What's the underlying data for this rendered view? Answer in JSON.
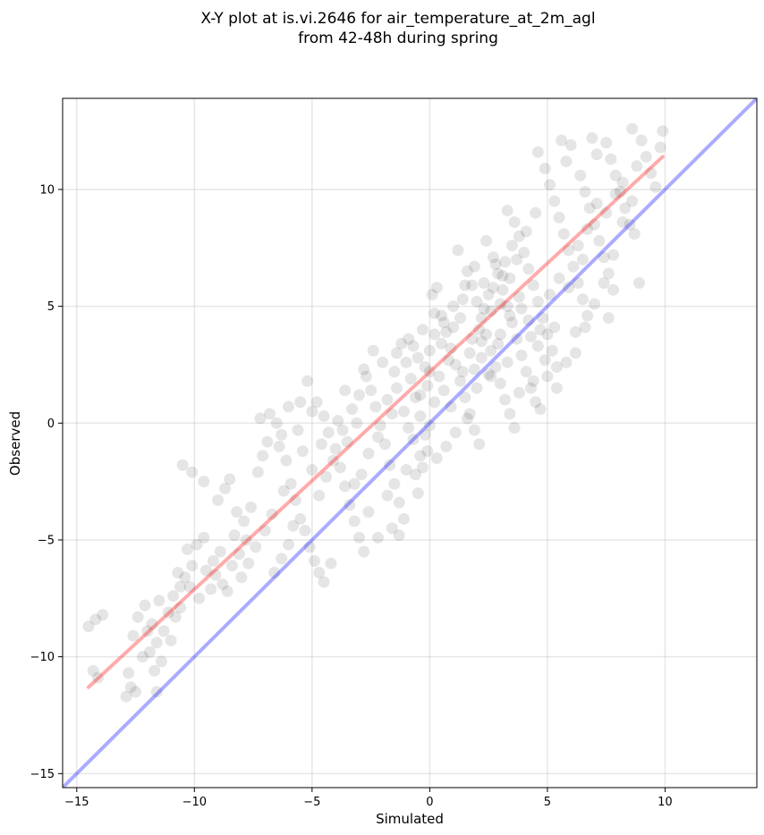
{
  "chart_data": {
    "type": "scatter",
    "title_line1": "X-Y plot at is.vi.2646 for air_temperature_at_2m_agl",
    "title_line2": "from 42-48h during spring",
    "xlabel": "Simulated",
    "ylabel": "Observed",
    "xlim": [
      -15.6,
      13.9
    ],
    "ylim": [
      -15.6,
      13.9
    ],
    "xticks": [
      -15,
      -10,
      -5,
      0,
      5,
      10
    ],
    "yticks": [
      -15,
      -10,
      -5,
      0,
      5,
      10
    ],
    "xtick_labels": [
      "−15",
      "−10",
      "−5",
      "0",
      "5",
      "10"
    ],
    "ytick_labels": [
      "−15",
      "−10",
      "−5",
      "0",
      "5",
      "10"
    ],
    "grid": true,
    "point_color": "#000000",
    "point_alpha": 0.1,
    "regression_line": {
      "x": [
        -14.5,
        9.9
      ],
      "y": [
        -11.3,
        11.4
      ],
      "color": "#ff0000"
    },
    "identity_line": {
      "x": [
        -15.6,
        13.9
      ],
      "y": [
        -15.6,
        13.9
      ],
      "color": "#0000ff"
    },
    "points": [
      [
        -14.5,
        -8.7
      ],
      [
        -14.2,
        -8.4
      ],
      [
        -13.9,
        -8.2
      ],
      [
        -14.3,
        -10.6
      ],
      [
        -14.1,
        -10.9
      ],
      [
        -12.9,
        -11.7
      ],
      [
        -12.7,
        -11.3
      ],
      [
        -12.5,
        -11.5
      ],
      [
        -11.6,
        -11.5
      ],
      [
        -12.8,
        -10.7
      ],
      [
        -12.6,
        -9.1
      ],
      [
        -12.4,
        -8.3
      ],
      [
        -12.1,
        -7.8
      ],
      [
        -11.8,
        -8.6
      ],
      [
        -11.6,
        -9.4
      ],
      [
        -11.3,
        -8.9
      ],
      [
        -11.1,
        -8.1
      ],
      [
        -10.9,
        -7.4
      ],
      [
        -10.6,
        -7.0
      ],
      [
        -10.4,
        -6.6
      ],
      [
        -10.1,
        -6.1
      ],
      [
        -10.3,
        -5.4
      ],
      [
        -9.9,
        -5.2
      ],
      [
        -9.6,
        -4.9
      ],
      [
        -10.5,
        -1.8
      ],
      [
        -10.1,
        -2.1
      ],
      [
        -9.6,
        -2.5
      ],
      [
        -12.2,
        -10.0
      ],
      [
        -11.9,
        -9.8
      ],
      [
        -11.4,
        -10.2
      ],
      [
        -11.7,
        -10.6
      ],
      [
        -10.8,
        -8.3
      ],
      [
        -10.6,
        -7.9
      ],
      [
        -9.3,
        -7.1
      ],
      [
        -9.1,
        -6.5
      ],
      [
        -8.8,
        -6.9
      ],
      [
        -8.6,
        -7.2
      ],
      [
        -8.4,
        -6.1
      ],
      [
        -8.1,
        -5.6
      ],
      [
        -7.8,
        -5.0
      ],
      [
        -9.0,
        -3.3
      ],
      [
        -8.7,
        -2.8
      ],
      [
        -8.5,
        -2.4
      ],
      [
        -8.2,
        -3.8
      ],
      [
        -7.9,
        -4.2
      ],
      [
        -7.6,
        -3.6
      ],
      [
        -7.3,
        -2.1
      ],
      [
        -7.1,
        -1.4
      ],
      [
        -6.9,
        -0.8
      ],
      [
        -7.2,
        0.2
      ],
      [
        -6.8,
        0.4
      ],
      [
        -6.5,
        0.0
      ],
      [
        -6.3,
        -0.5
      ],
      [
        -6.1,
        -1.6
      ],
      [
        -5.9,
        -2.6
      ],
      [
        -5.7,
        -3.3
      ],
      [
        -5.5,
        -4.1
      ],
      [
        -5.3,
        -4.6
      ],
      [
        -5.1,
        -5.3
      ],
      [
        -4.9,
        -5.9
      ],
      [
        -4.7,
        -6.4
      ],
      [
        -4.5,
        -6.8
      ],
      [
        -4.2,
        -6.0
      ],
      [
        -6.6,
        -6.4
      ],
      [
        -6.3,
        -5.8
      ],
      [
        -6.0,
        -5.2
      ],
      [
        -5.8,
        -4.4
      ],
      [
        -5.2,
        1.8
      ],
      [
        -4.8,
        0.9
      ],
      [
        -4.5,
        0.3
      ],
      [
        -4.3,
        -0.4
      ],
      [
        -4.0,
        -1.1
      ],
      [
        -3.8,
        -1.9
      ],
      [
        -3.6,
        -2.7
      ],
      [
        -3.4,
        -3.5
      ],
      [
        -3.2,
        -4.2
      ],
      [
        -3.0,
        -4.9
      ],
      [
        -2.8,
        -5.5
      ],
      [
        -3.3,
        0.6
      ],
      [
        -3.0,
        1.2
      ],
      [
        -2.7,
        2.0
      ],
      [
        -2.5,
        1.4
      ],
      [
        -2.3,
        0.7
      ],
      [
        -2.1,
        -0.1
      ],
      [
        -1.9,
        -0.9
      ],
      [
        -1.7,
        -1.8
      ],
      [
        -1.5,
        -2.6
      ],
      [
        -1.3,
        -3.4
      ],
      [
        -1.1,
        -4.1
      ],
      [
        -1.3,
        -4.8
      ],
      [
        -1.6,
        -4.5
      ],
      [
        -1.4,
        3.0
      ],
      [
        -1.2,
        3.4
      ],
      [
        -1.0,
        2.6
      ],
      [
        -0.8,
        1.9
      ],
      [
        -0.6,
        1.1
      ],
      [
        -0.4,
        0.3
      ],
      [
        -0.2,
        -0.5
      ],
      [
        -0.4,
        -1.4
      ],
      [
        -0.6,
        -2.2
      ],
      [
        0.0,
        -0.1
      ],
      [
        -0.2,
        2.4
      ],
      [
        0.0,
        3.1
      ],
      [
        0.2,
        3.8
      ],
      [
        0.1,
        5.5
      ],
      [
        0.3,
        5.8
      ],
      [
        0.5,
        4.6
      ],
      [
        0.7,
        3.9
      ],
      [
        0.9,
        3.2
      ],
      [
        1.1,
        2.5
      ],
      [
        1.3,
        1.8
      ],
      [
        1.5,
        1.1
      ],
      [
        1.7,
        0.4
      ],
      [
        1.9,
        -0.3
      ],
      [
        2.1,
        -0.9
      ],
      [
        1.2,
        7.4
      ],
      [
        1.6,
        6.5
      ],
      [
        1.8,
        5.9
      ],
      [
        2.0,
        5.2
      ],
      [
        2.2,
        4.5
      ],
      [
        2.4,
        3.8
      ],
      [
        2.6,
        3.1
      ],
      [
        2.8,
        2.4
      ],
      [
        3.0,
        1.7
      ],
      [
        3.2,
        1.0
      ],
      [
        3.4,
        0.4
      ],
      [
        3.6,
        -0.2
      ],
      [
        2.4,
        7.8
      ],
      [
        2.7,
        7.1
      ],
      [
        2.9,
        6.4
      ],
      [
        3.1,
        5.7
      ],
      [
        3.3,
        5.0
      ],
      [
        3.5,
        4.3
      ],
      [
        3.7,
        3.6
      ],
      [
        3.9,
        2.9
      ],
      [
        4.1,
        2.2
      ],
      [
        4.3,
        1.5
      ],
      [
        4.5,
        0.9
      ],
      [
        4.7,
        0.6
      ],
      [
        3.3,
        9.1
      ],
      [
        3.6,
        8.6
      ],
      [
        3.8,
        8.0
      ],
      [
        4.0,
        7.3
      ],
      [
        4.2,
        6.6
      ],
      [
        4.4,
        5.9
      ],
      [
        4.6,
        5.2
      ],
      [
        4.8,
        4.5
      ],
      [
        5.0,
        3.8
      ],
      [
        5.2,
        3.1
      ],
      [
        5.4,
        2.4
      ],
      [
        4.6,
        11.6
      ],
      [
        4.9,
        10.9
      ],
      [
        5.1,
        10.2
      ],
      [
        5.3,
        9.5
      ],
      [
        5.5,
        8.8
      ],
      [
        5.7,
        8.1
      ],
      [
        5.9,
        7.4
      ],
      [
        6.1,
        6.7
      ],
      [
        6.3,
        6.0
      ],
      [
        6.5,
        5.3
      ],
      [
        6.7,
        4.6
      ],
      [
        6.2,
        3.9
      ],
      [
        5.8,
        11.2
      ],
      [
        6.0,
        11.9
      ],
      [
        6.4,
        10.6
      ],
      [
        6.6,
        9.9
      ],
      [
        6.8,
        9.2
      ],
      [
        7.0,
        8.5
      ],
      [
        7.2,
        7.8
      ],
      [
        7.4,
        7.1
      ],
      [
        7.6,
        6.4
      ],
      [
        7.8,
        5.7
      ],
      [
        7.6,
        4.5
      ],
      [
        7.1,
        11.5
      ],
      [
        7.5,
        12.0
      ],
      [
        7.7,
        11.3
      ],
      [
        7.9,
        10.6
      ],
      [
        8.1,
        9.9
      ],
      [
        8.3,
        9.2
      ],
      [
        8.5,
        8.5
      ],
      [
        8.7,
        8.1
      ],
      [
        8.9,
        6.0
      ],
      [
        8.6,
        12.6
      ],
      [
        9.0,
        12.1
      ],
      [
        9.2,
        11.4
      ],
      [
        9.4,
        10.7
      ],
      [
        9.6,
        10.1
      ],
      [
        9.8,
        11.8
      ],
      [
        9.9,
        12.5
      ],
      [
        8.8,
        11.0
      ],
      [
        6.9,
        12.2
      ],
      [
        5.6,
        12.1
      ],
      [
        0.6,
        1.4
      ],
      [
        0.8,
        2.7
      ],
      [
        1.0,
        4.1
      ],
      [
        1.4,
        5.3
      ],
      [
        1.9,
        6.7
      ],
      [
        2.3,
        6.0
      ],
      [
        2.5,
        5.5
      ],
      [
        2.8,
        6.8
      ],
      [
        3.2,
        6.9
      ],
      [
        3.4,
        6.2
      ],
      [
        3.0,
        5.1
      ],
      [
        2.6,
        4.8
      ],
      [
        2.2,
        3.5
      ],
      [
        1.7,
        3.0
      ],
      [
        1.3,
        4.5
      ],
      [
        0.4,
        2.0
      ],
      [
        0.2,
        0.9
      ],
      [
        -0.1,
        1.6
      ],
      [
        -0.5,
        2.8
      ],
      [
        -0.9,
        3.6
      ],
      [
        -1.5,
        2.2
      ],
      [
        -1.8,
        1.0
      ],
      [
        -2.2,
        -0.6
      ],
      [
        -2.6,
        -1.3
      ],
      [
        -2.9,
        -2.2
      ],
      [
        -3.5,
        -0.8
      ],
      [
        -3.9,
        0.1
      ],
      [
        -4.4,
        -2.3
      ],
      [
        -4.7,
        -3.1
      ],
      [
        -5.0,
        -2.0
      ],
      [
        -5.4,
        -1.2
      ],
      [
        -5.6,
        -0.3
      ],
      [
        -6.2,
        -2.9
      ],
      [
        -6.7,
        -3.9
      ],
      [
        -7.0,
        -4.6
      ],
      [
        -7.4,
        -5.3
      ],
      [
        -7.7,
        -6.0
      ],
      [
        -8.0,
        -6.6
      ],
      [
        -8.3,
        -4.8
      ],
      [
        -8.9,
        -5.5
      ],
      [
        -9.2,
        -5.9
      ],
      [
        -9.5,
        -6.3
      ],
      [
        -9.8,
        -7.5
      ],
      [
        -10.2,
        -7.0
      ],
      [
        -10.7,
        -6.4
      ],
      [
        -11.0,
        -9.3
      ],
      [
        -11.5,
        -7.6
      ],
      [
        -12.0,
        -8.9
      ],
      [
        3.9,
        4.9
      ],
      [
        4.3,
        3.7
      ],
      [
        4.7,
        4.0
      ],
      [
        5.1,
        5.5
      ],
      [
        5.5,
        6.2
      ],
      [
        5.9,
        5.8
      ],
      [
        6.3,
        7.6
      ],
      [
        6.7,
        8.3
      ],
      [
        7.1,
        9.4
      ],
      [
        7.5,
        9.0
      ],
      [
        7.9,
        9.8
      ],
      [
        8.2,
        10.3
      ],
      [
        6.5,
        7.0
      ],
      [
        5.3,
        4.1
      ],
      [
        4.9,
        2.7
      ],
      [
        4.4,
        1.8
      ],
      [
        3.8,
        1.3
      ],
      [
        3.3,
        2.6
      ],
      [
        2.9,
        3.4
      ],
      [
        2.5,
        2.1
      ],
      [
        2.0,
        1.5
      ],
      [
        1.6,
        0.2
      ],
      [
        1.1,
        -0.4
      ],
      [
        0.7,
        -1.0
      ],
      [
        0.3,
        -1.5
      ],
      [
        -0.3,
        -1.9
      ],
      [
        -0.7,
        -0.7
      ],
      [
        -1.1,
        0.5
      ],
      [
        -1.4,
        1.5
      ],
      [
        -2.0,
        2.6
      ],
      [
        -2.4,
        3.1
      ],
      [
        -2.8,
        2.3
      ],
      [
        -3.1,
        0.0
      ],
      [
        -3.7,
        -0.3
      ],
      [
        -4.1,
        -1.6
      ],
      [
        -4.6,
        -0.9
      ],
      [
        -5.0,
        0.5
      ],
      [
        -5.5,
        0.9
      ],
      [
        -6.0,
        0.7
      ],
      [
        -6.4,
        -1.0
      ],
      [
        2.1,
        4.0
      ],
      [
        2.3,
        4.9
      ],
      [
        2.7,
        5.8
      ],
      [
        3.1,
        6.3
      ],
      [
        3.5,
        7.6
      ],
      [
        3.7,
        7.0
      ],
      [
        4.1,
        8.2
      ],
      [
        4.5,
        9.0
      ],
      [
        1.5,
        5.9
      ],
      [
        1.0,
        5.0
      ],
      [
        0.6,
        4.3
      ],
      [
        0.2,
        4.7
      ],
      [
        -0.3,
        4.0
      ],
      [
        -0.7,
        3.3
      ],
      [
        1.8,
        3.6
      ],
      [
        2.2,
        2.8
      ],
      [
        2.6,
        2.0
      ],
      [
        3.0,
        3.8
      ],
      [
        3.4,
        4.6
      ],
      [
        3.8,
        5.4
      ],
      [
        4.2,
        4.4
      ],
      [
        4.6,
        3.3
      ],
      [
        5.0,
        2.0
      ],
      [
        5.4,
        1.5
      ],
      [
        5.8,
        2.6
      ],
      [
        6.2,
        3.0
      ],
      [
        6.6,
        4.1
      ],
      [
        7.0,
        5.1
      ],
      [
        7.4,
        6.0
      ],
      [
        7.8,
        7.2
      ],
      [
        8.2,
        8.6
      ],
      [
        8.6,
        9.5
      ],
      [
        -3.6,
        1.4
      ],
      [
        -3.2,
        -2.6
      ],
      [
        -2.6,
        -3.8
      ],
      [
        -2.2,
        -4.9
      ],
      [
        -1.8,
        -3.1
      ],
      [
        -1.0,
        -2.0
      ],
      [
        -0.5,
        -3.0
      ],
      [
        -0.1,
        -1.2
      ],
      [
        0.9,
        0.7
      ],
      [
        1.4,
        2.2
      ],
      [
        1.9,
        2.3
      ],
      [
        0.5,
        3.4
      ],
      [
        0.0,
        2.2
      ],
      [
        -0.4,
        1.2
      ],
      [
        -0.9,
        -0.2
      ],
      [
        -1.6,
        0.4
      ]
    ]
  }
}
